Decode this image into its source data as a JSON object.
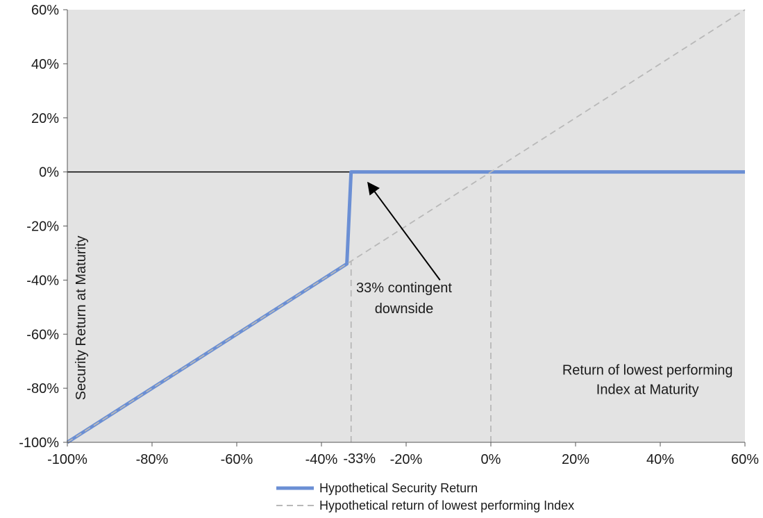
{
  "chart_data": {
    "type": "line",
    "title": "",
    "xlabel": "Return of lowest performing Index at Maturity",
    "xlabel_lines": [
      "Return of lowest performing",
      "Index at Maturity"
    ],
    "ylabel": "Security Return at Maturity",
    "xlim": [
      -100,
      60
    ],
    "ylim": [
      -100,
      60
    ],
    "x_ticks": [
      -100,
      -80,
      -60,
      -40,
      -20,
      0,
      20,
      40,
      60
    ],
    "x_tick_labels": [
      "-100%",
      "-80%",
      "-60%",
      "-40%",
      "-20%",
      "0%",
      "20%",
      "40%",
      "60%"
    ],
    "y_ticks": [
      -100,
      -80,
      -60,
      -40,
      -20,
      0,
      20,
      40,
      60
    ],
    "y_tick_labels": [
      "-100%",
      "-80%",
      "-60%",
      "-40%",
      "-20%",
      "0%",
      "20%",
      "40%",
      "60%"
    ],
    "extra_x_tick": {
      "value": -33,
      "label": "-33%"
    },
    "grid": false,
    "plot_background": "#e3e3e3",
    "reference_lines": [
      {
        "type": "horizontal",
        "y": 0,
        "color": "#000000"
      },
      {
        "type": "vertical",
        "x": -33,
        "y_range": [
          -100,
          -33
        ],
        "style": "dashed",
        "color": "#b0b0b0"
      },
      {
        "type": "vertical",
        "x": 0,
        "y_range": [
          -100,
          0
        ],
        "style": "dashed",
        "color": "#b0b0b0"
      }
    ],
    "series": [
      {
        "name": "Hypothetical Security Return",
        "style": "solid",
        "color": "#6b8fd4",
        "x": [
          -100,
          -34,
          -33,
          60
        ],
        "y": [
          -100,
          -34,
          0,
          0
        ]
      },
      {
        "name": "Hypothetical return of lowest performing Index",
        "style": "dashed",
        "color": "#b8b8b8",
        "x": [
          -100,
          60
        ],
        "y": [
          -100,
          60
        ]
      }
    ],
    "annotations": [
      {
        "text_lines": [
          "33% contingent",
          "downside"
        ],
        "arrow_from": [
          -12,
          -40
        ],
        "arrow_to": [
          -29,
          -4
        ]
      }
    ],
    "legend_position": "bottom"
  }
}
